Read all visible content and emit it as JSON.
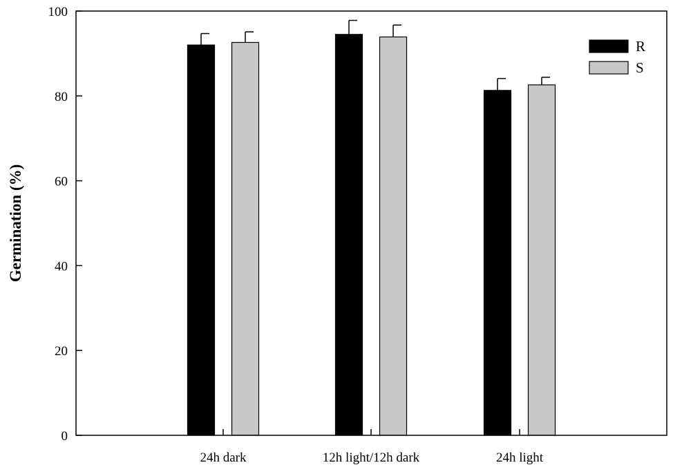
{
  "chart_data": {
    "type": "bar",
    "title": "",
    "xlabel": "",
    "ylabel": "Germination (%)",
    "ylim": [
      0,
      100
    ],
    "yticks": [
      0,
      20,
      40,
      60,
      80,
      100
    ],
    "grid": false,
    "legend_position": "top-right",
    "categories": [
      "24h dark",
      "12h light/12h dark",
      "24h light"
    ],
    "series": [
      {
        "name": "R",
        "color": "#000000",
        "values": [
          92,
          94.5,
          81.3
        ],
        "errors": [
          2.7,
          3.3,
          2.8
        ]
      },
      {
        "name": "S",
        "color": "#c8c8c8",
        "values": [
          92.6,
          93.9,
          82.6
        ],
        "errors": [
          2.5,
          2.8,
          1.8
        ]
      }
    ]
  }
}
